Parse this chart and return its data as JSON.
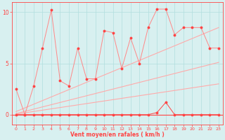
{
  "x": [
    0,
    1,
    2,
    3,
    4,
    5,
    6,
    7,
    8,
    9,
    10,
    11,
    12,
    13,
    14,
    15,
    16,
    17,
    18,
    19,
    20,
    21,
    22,
    23
  ],
  "rafales": [
    2.5,
    0.0,
    2.8,
    6.5,
    10.2,
    3.3,
    2.8,
    6.5,
    3.5,
    3.5,
    8.2,
    8.0,
    4.5,
    7.5,
    5.0,
    8.5,
    10.3,
    10.3,
    7.8,
    8.5,
    8.5,
    8.5,
    6.5,
    6.5
  ],
  "moyen": [
    0.0,
    0.0,
    0.0,
    0.0,
    0.0,
    0.0,
    0.0,
    0.0,
    0.0,
    0.0,
    0.0,
    0.0,
    0.0,
    0.0,
    0.0,
    0.0,
    0.2,
    1.2,
    0.0,
    0.0,
    0.0,
    0.0,
    0.0,
    0.0
  ],
  "trend1_x": [
    0,
    23
  ],
  "trend1_y": [
    0.3,
    8.5
  ],
  "trend2_x": [
    0,
    23
  ],
  "trend2_y": [
    0.1,
    5.1
  ],
  "trend3_x": [
    0,
    23
  ],
  "trend3_y": [
    0.05,
    3.0
  ],
  "xlabel": "Vent moyen/en rafales ( km/h )",
  "background_color": "#d8f0f0",
  "grid_color": "#b0dede",
  "line_color_dark": "#ff4444",
  "line_color_mid": "#ff8888",
  "line_color_light": "#ffaaaa",
  "ylim": [
    -1.0,
    11.0
  ],
  "xlim": [
    -0.5,
    23.5
  ],
  "yticks": [
    0,
    5,
    10
  ],
  "xticks": [
    0,
    1,
    2,
    3,
    4,
    5,
    6,
    7,
    8,
    9,
    10,
    11,
    12,
    13,
    14,
    15,
    16,
    17,
    18,
    19,
    20,
    21,
    22,
    23
  ]
}
